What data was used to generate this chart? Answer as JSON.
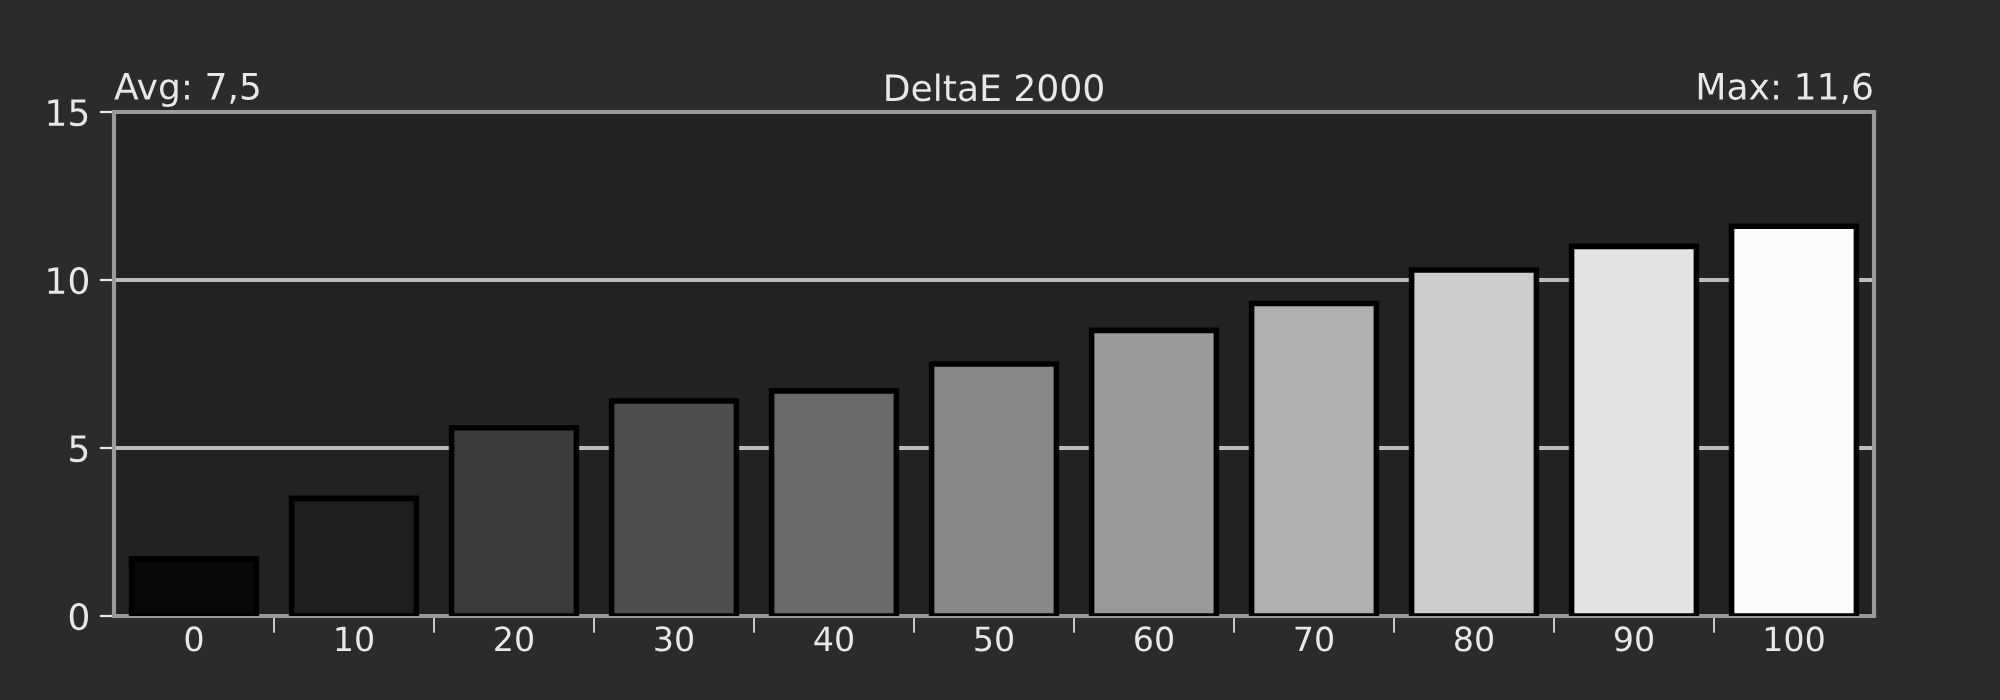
{
  "chart_data": {
    "type": "bar",
    "title": "DeltaE 2000",
    "annotations": [
      "Avg: 7,5",
      "Max: 11,6"
    ],
    "categories": [
      "0",
      "10",
      "20",
      "30",
      "40",
      "50",
      "60",
      "70",
      "80",
      "90",
      "100"
    ],
    "values": [
      1.7,
      3.5,
      5.6,
      6.4,
      6.7,
      7.5,
      8.5,
      9.3,
      10.3,
      11.0,
      11.6
    ],
    "colors": [
      "#080808",
      "#1e1e1e",
      "#3a3a3a",
      "#4e4e4e",
      "#6a6a6a",
      "#888888",
      "#9a9a9a",
      "#b0b0b0",
      "#cccccc",
      "#e4e4e4",
      "#fcfcfc"
    ],
    "ylim": [
      0,
      15
    ],
    "yticks": [
      0,
      5,
      10,
      15
    ],
    "grid": "y"
  }
}
